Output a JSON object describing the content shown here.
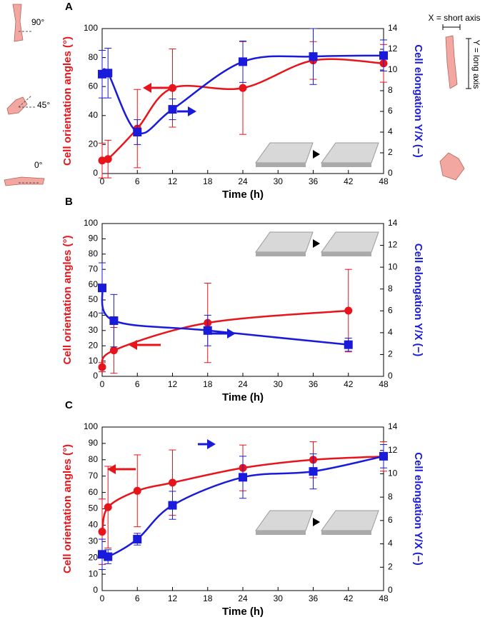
{
  "chart_data": [
    {
      "type": "line",
      "panel": "A",
      "xlabel": "Time (h)",
      "ylabel": "Cell orientation angles (°)",
      "y2label": "Cell elongation Y/X (−)",
      "x": [
        0,
        1,
        6,
        12,
        24,
        36,
        48
      ],
      "xlim": [
        0,
        48
      ],
      "xticks": [
        0,
        6,
        12,
        18,
        24,
        30,
        36,
        42,
        48
      ],
      "ylim": [
        0,
        100
      ],
      "yticks": [
        0,
        20,
        40,
        60,
        80,
        100
      ],
      "y2lim": [
        0,
        14
      ],
      "y2ticks": [
        0,
        2,
        4,
        6,
        8,
        10,
        12,
        14
      ],
      "series": [
        {
          "color": "#e8141b",
          "marker": "circle",
          "values": [
            9,
            10,
            31,
            59,
            59,
            78,
            76
          ],
          "errors": [
            12,
            13,
            27,
            27,
            32,
            13,
            13
          ]
        },
        {
          "color": "#1a1adb",
          "marker": "square",
          "axis": "y2",
          "values": [
            9.6,
            9.7,
            4,
            6.2,
            10.8,
            11.3,
            11.4
          ],
          "errors": [
            2.3,
            2.4,
            1.2,
            1,
            2,
            2.7,
            1.5
          ]
        }
      ],
      "annotations": [
        "90°",
        "45°",
        "0°",
        "X = short axis",
        "Y = long axis"
      ]
    },
    {
      "type": "line",
      "panel": "B",
      "xlabel": "Time (h)",
      "ylabel": "Cell orientation angles (°)",
      "y2label": "Cell elongation Y/X (−)",
      "x": [
        0,
        2,
        18,
        42
      ],
      "xlim": [
        0,
        48
      ],
      "xticks": [
        0,
        6,
        12,
        18,
        24,
        30,
        36,
        42,
        48
      ],
      "ylim": [
        0,
        100
      ],
      "yticks": [
        0,
        10,
        20,
        30,
        40,
        50,
        60,
        70,
        80,
        90,
        100
      ],
      "y2lim": [
        0,
        14
      ],
      "y2ticks": [
        0,
        2,
        4,
        6,
        8,
        10,
        12,
        14
      ],
      "series": [
        {
          "color": "#e8141b",
          "marker": "circle",
          "values": [
            6,
            17,
            35,
            43
          ],
          "errors": [
            3,
            15,
            26,
            27
          ]
        },
        {
          "color": "#1a1adb",
          "marker": "square",
          "axis": "y2",
          "values": [
            8.1,
            5.1,
            4.2,
            2.9
          ],
          "errors": [
            2.3,
            2.4,
            1.4,
            0.6
          ]
        }
      ]
    },
    {
      "type": "line",
      "panel": "C",
      "xlabel": "Time (h)",
      "ylabel": "Cell orientation angles (°)",
      "y2label": "Cell elongation Y/X (−)",
      "x": [
        0,
        1,
        6,
        12,
        24,
        36,
        48
      ],
      "xlim": [
        0,
        48
      ],
      "xticks": [
        0,
        6,
        12,
        18,
        24,
        30,
        36,
        42,
        48
      ],
      "ylim": [
        0,
        100
      ],
      "yticks": [
        0,
        10,
        20,
        30,
        40,
        50,
        60,
        70,
        80,
        90,
        100
      ],
      "y2lim": [
        0,
        14
      ],
      "y2ticks": [
        0,
        2,
        4,
        6,
        8,
        10,
        12,
        14
      ],
      "series": [
        {
          "color": "#e8141b",
          "marker": "circle",
          "values": [
            36,
            51,
            61,
            66,
            75,
            80,
            82
          ],
          "errors": [
            20,
            25,
            22,
            20,
            14,
            11,
            9
          ]
        },
        {
          "color": "#1a1adb",
          "marker": "square",
          "axis": "y2",
          "values": [
            3.1,
            2.9,
            4.4,
            7.3,
            9.7,
            10.2,
            11.5
          ],
          "errors": [
            1.3,
            0.6,
            0.5,
            1.2,
            1.8,
            1.5,
            1
          ]
        }
      ]
    }
  ]
}
